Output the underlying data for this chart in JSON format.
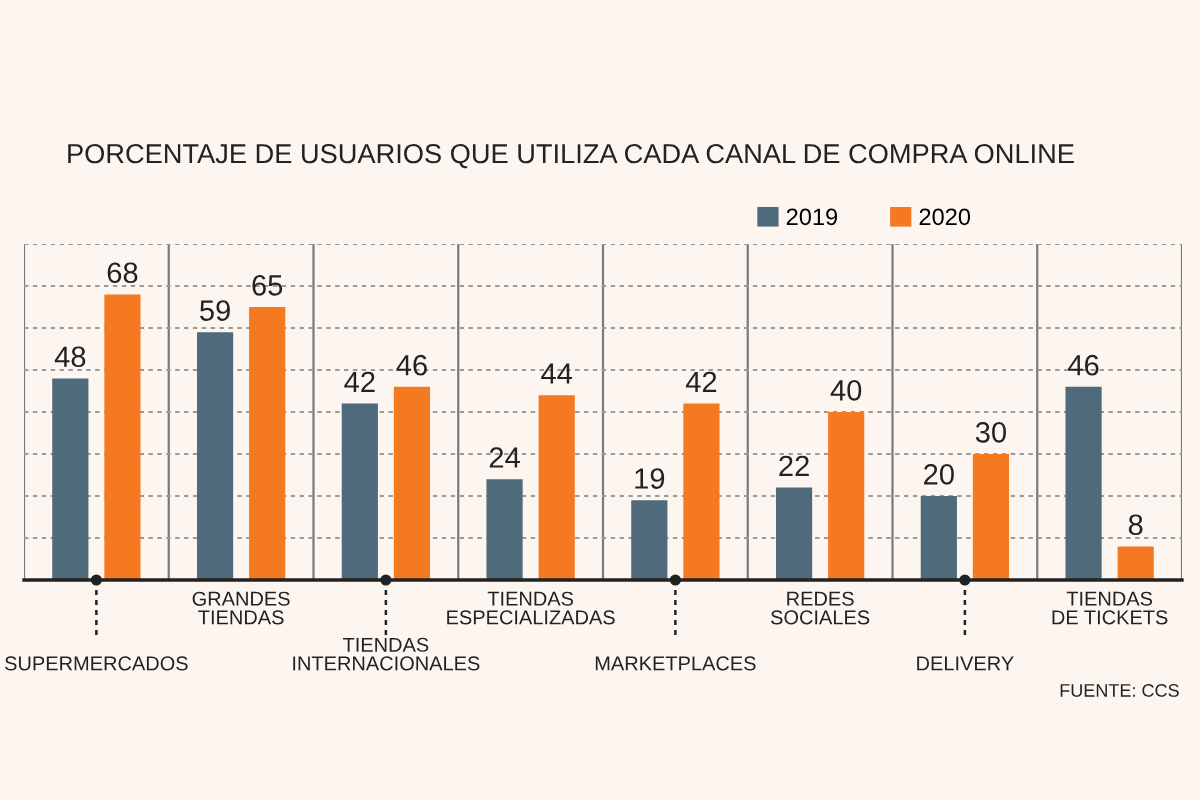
{
  "chart_data": {
    "type": "bar",
    "title": "PORCENTAJE DE USUARIOS QUE UTILIZA CADA CANAL DE COMPRA ONLINE",
    "categories": [
      "SUPERMERCADOS",
      "GRANDES\nTIENDAS",
      "TIENDAS\nINTERNACIONALES",
      "TIENDAS\nESPECIALIZADAS",
      "MARKETPLACES",
      "REDES\nSOCIALES",
      "DELIVERY",
      "TIENDAS\nDE TICKETS"
    ],
    "series": [
      {
        "name": "2019",
        "color": "#4f6a7a",
        "values": [
          48,
          59,
          42,
          24,
          19,
          22,
          20,
          46
        ]
      },
      {
        "name": "2020",
        "color": "#f47920",
        "values": [
          68,
          65,
          46,
          44,
          42,
          40,
          30,
          8
        ]
      }
    ],
    "ylim": [
      0,
      80
    ],
    "yticks": [
      {
        "value": 0,
        "label": null
      },
      {
        "value": 10,
        "label": null
      },
      {
        "value": 20,
        "label": null
      },
      {
        "value": 30,
        "label": null
      },
      {
        "value": 40,
        "label": null
      },
      {
        "value": 50,
        "label": null
      },
      {
        "value": 60,
        "label": null
      },
      {
        "value": 70,
        "label": null
      },
      {
        "value": 80,
        "label": null
      }
    ],
    "grid": true,
    "legend": "top right",
    "data_labels": true,
    "tick_labels": "x",
    "annotations": [
      "FUENTE: CCS"
    ]
  }
}
